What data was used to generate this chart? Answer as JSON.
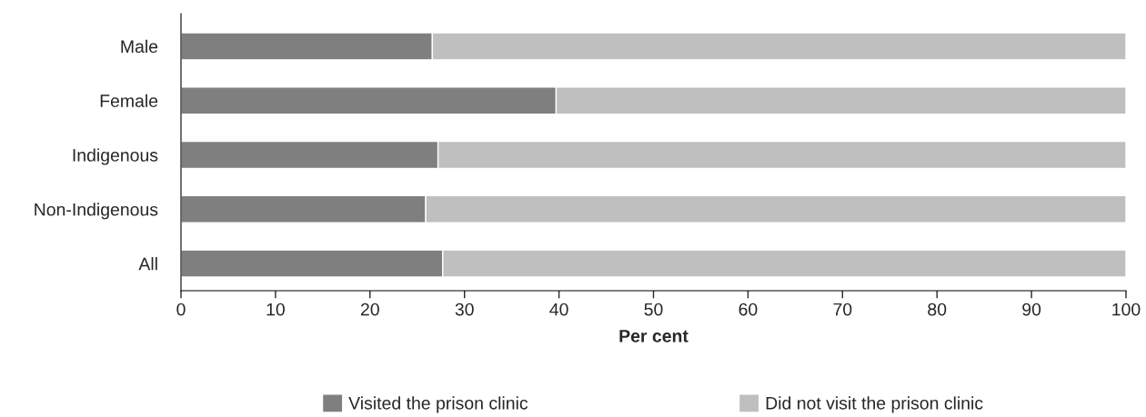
{
  "chart_data": {
    "type": "bar",
    "orientation": "horizontal",
    "stacked": true,
    "xlabel": "Per cent",
    "categories": [
      "Male",
      "Female",
      "Indigenous",
      "Non-Indigenous",
      "All"
    ],
    "series": [
      {
        "name": "Visited the prison clinic",
        "color": "#7f7f7f",
        "values": [
          26.6,
          39.7,
          27.2,
          25.9,
          27.7
        ]
      },
      {
        "name": "Did not visit the prison clinic",
        "color": "#bfbfbf",
        "values": [
          73.4,
          60.3,
          72.8,
          74.1,
          72.3
        ]
      }
    ],
    "xlim": [
      0,
      100
    ],
    "xticks": [
      0,
      10,
      20,
      30,
      40,
      50,
      60,
      70,
      80,
      90,
      100
    ],
    "grid": false,
    "legend": "bottom"
  }
}
